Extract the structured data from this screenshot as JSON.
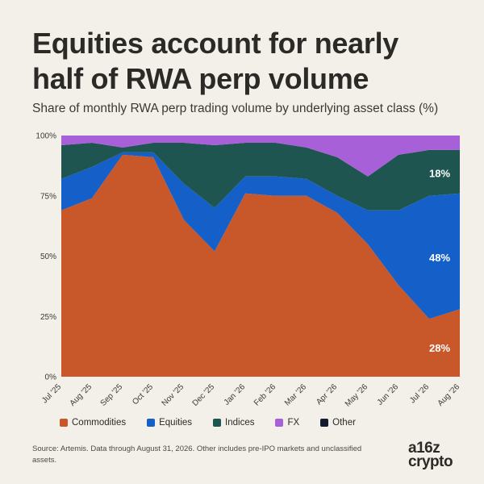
{
  "header": {
    "title_line1": "Equities account for nearly",
    "title_line2": "half of RWA perp volume",
    "subtitle": "Share of monthly RWA perp trading volume by underlying asset class (%)"
  },
  "footer": {
    "source": "Source: Artemis. Data through August 31, 2026. Other includes pre-IPO markets and unclassified assets.",
    "logo_line1": "a16z",
    "logo_line2": "crypto"
  },
  "chart_data": {
    "type": "area",
    "stacked": true,
    "categories": [
      "Jul '25",
      "Aug '25",
      "Sep '25",
      "Oct '25",
      "Nov '25",
      "Dec '25",
      "Jan '26",
      "Feb '26",
      "Mar '26",
      "Apr '26",
      "May '26",
      "Jun '26",
      "Jul '26",
      "Aug '26"
    ],
    "series": [
      {
        "name": "Commodities",
        "color": "#c8572a",
        "values": [
          69,
          74,
          92,
          91,
          65,
          52,
          76,
          75,
          75,
          68,
          55,
          38,
          24,
          28
        ]
      },
      {
        "name": "Equities",
        "color": "#1460c8",
        "values": [
          13,
          13,
          1,
          2,
          15,
          18,
          7,
          8,
          7,
          7,
          14,
          31,
          51,
          48
        ]
      },
      {
        "name": "Indices",
        "color": "#1f5550",
        "values": [
          14,
          10,
          2,
          4,
          17,
          26,
          14,
          14,
          13,
          16,
          14,
          23,
          19,
          18
        ]
      },
      {
        "name": "FX",
        "color": "#a860d8",
        "values": [
          4,
          3,
          5,
          3,
          3,
          4,
          3,
          3,
          5,
          9,
          17,
          8,
          6,
          6
        ]
      },
      {
        "name": "Other",
        "color": "#141a30",
        "values": [
          0,
          0,
          0,
          0,
          0,
          0,
          0,
          0,
          0,
          0,
          0,
          0,
          0,
          0
        ]
      }
    ],
    "ylim": [
      0,
      100
    ],
    "yticks": [
      "0%",
      "25%",
      "50%",
      "75%",
      "100%"
    ],
    "ytick_values": [
      0,
      25,
      50,
      75,
      100
    ],
    "data_labels": [
      {
        "series": "Indices",
        "category": "Jul '26",
        "text": "18%"
      },
      {
        "series": "Equities",
        "category": "Jul '26",
        "text": "48%"
      },
      {
        "series": "Commodities",
        "category": "Jul '26",
        "text": "28%"
      }
    ],
    "legend_position": "bottom",
    "grid": false
  }
}
